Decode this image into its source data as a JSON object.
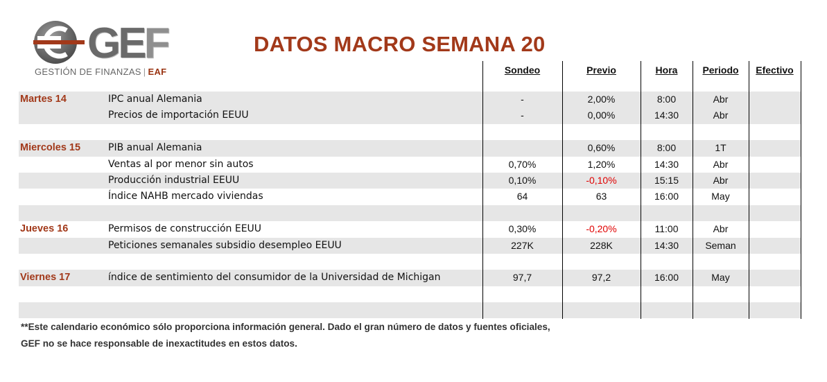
{
  "logo": {
    "word_ge": "GE",
    "word_f": "F",
    "subtitle_main": "GESTIÓN DE FINANZAS",
    "subtitle_sep": "|",
    "subtitle_eaf": "EAF"
  },
  "title": "DATOS MACRO SEMANA 20",
  "headers": {
    "sondeo": "Sondeo",
    "previo": "Previo",
    "hora": "Hora",
    "periodo": "Periodo",
    "efectivo": "Efectivo"
  },
  "colors": {
    "title": "#a2391a",
    "negative": "#e00000",
    "row_shade": "#e6e6e6"
  },
  "rows": [
    {
      "shade": true,
      "day": "Martes 14",
      "name": "IPC anual Alemania",
      "sondeo": "-",
      "previo": "2,00%",
      "previo_negative": false,
      "hora": "8:00",
      "periodo": "Abr",
      "efectivo": ""
    },
    {
      "shade": true,
      "day": "",
      "name": "Precios de importación EEUU",
      "sondeo": "-",
      "previo": "0,00%",
      "previo_negative": false,
      "hora": "14:30",
      "periodo": "Abr",
      "efectivo": ""
    },
    {
      "shade": false,
      "day": "",
      "name": "",
      "sondeo": "",
      "previo": "",
      "previo_negative": false,
      "hora": "",
      "periodo": "",
      "efectivo": ""
    },
    {
      "shade": true,
      "day": "Miercoles 15",
      "name": "PIB anual Alemania",
      "sondeo": "",
      "previo": "0,60%",
      "previo_negative": false,
      "hora": "8:00",
      "periodo": "1T",
      "efectivo": ""
    },
    {
      "shade": false,
      "day": "",
      "name": "Ventas al por menor sin autos",
      "sondeo": "0,70%",
      "previo": "1,20%",
      "previo_negative": false,
      "hora": "14:30",
      "periodo": "Abr",
      "efectivo": ""
    },
    {
      "shade": true,
      "day": "",
      "name": "Producción industrial EEUU",
      "sondeo": "0,10%",
      "previo": "-0,10%",
      "previo_negative": true,
      "hora": "15:15",
      "periodo": "Abr",
      "efectivo": ""
    },
    {
      "shade": false,
      "day": "",
      "name": "Índice NAHB mercado viviendas",
      "sondeo": "64",
      "previo": "63",
      "previo_negative": false,
      "hora": "16:00",
      "periodo": "May",
      "efectivo": ""
    },
    {
      "shade": true,
      "day": "",
      "name": "",
      "sondeo": "",
      "previo": "",
      "previo_negative": false,
      "hora": "",
      "periodo": "",
      "efectivo": ""
    },
    {
      "shade": false,
      "day": "Jueves 16",
      "name": "Permisos de construcción EEUU",
      "sondeo": "0,30%",
      "previo": "-0,20%",
      "previo_negative": true,
      "hora": "11:00",
      "periodo": "Abr",
      "efectivo": ""
    },
    {
      "shade": true,
      "day": "",
      "name": "Peticiones semanales subsidio desempleo EEUU",
      "sondeo": "227K",
      "previo": "228K",
      "previo_negative": false,
      "hora": "14:30",
      "periodo": "Seman",
      "efectivo": ""
    },
    {
      "shade": false,
      "day": "",
      "name": "",
      "sondeo": "",
      "previo": "",
      "previo_negative": false,
      "hora": "",
      "periodo": "",
      "efectivo": ""
    },
    {
      "shade": true,
      "day": "Viernes 17",
      "name": "índice de sentimiento del consumidor de la Universidad de Michigan",
      "sondeo": "97,7",
      "previo": "97,2",
      "previo_negative": false,
      "hora": "16:00",
      "periodo": "May",
      "efectivo": ""
    },
    {
      "shade": false,
      "day": "",
      "name": "",
      "sondeo": "",
      "previo": "",
      "previo_negative": false,
      "hora": "",
      "periodo": "",
      "efectivo": ""
    },
    {
      "shade": true,
      "day": "",
      "name": "",
      "sondeo": "",
      "previo": "",
      "previo_negative": false,
      "hora": "",
      "periodo": "",
      "efectivo": ""
    }
  ],
  "footnote": {
    "line1": "**Este calendario económico sólo proporciona información general. Dado el gran número de datos y fuentes oficiales,",
    "line2": "GEF no se hace responsable de inexactitudes en estos datos."
  }
}
